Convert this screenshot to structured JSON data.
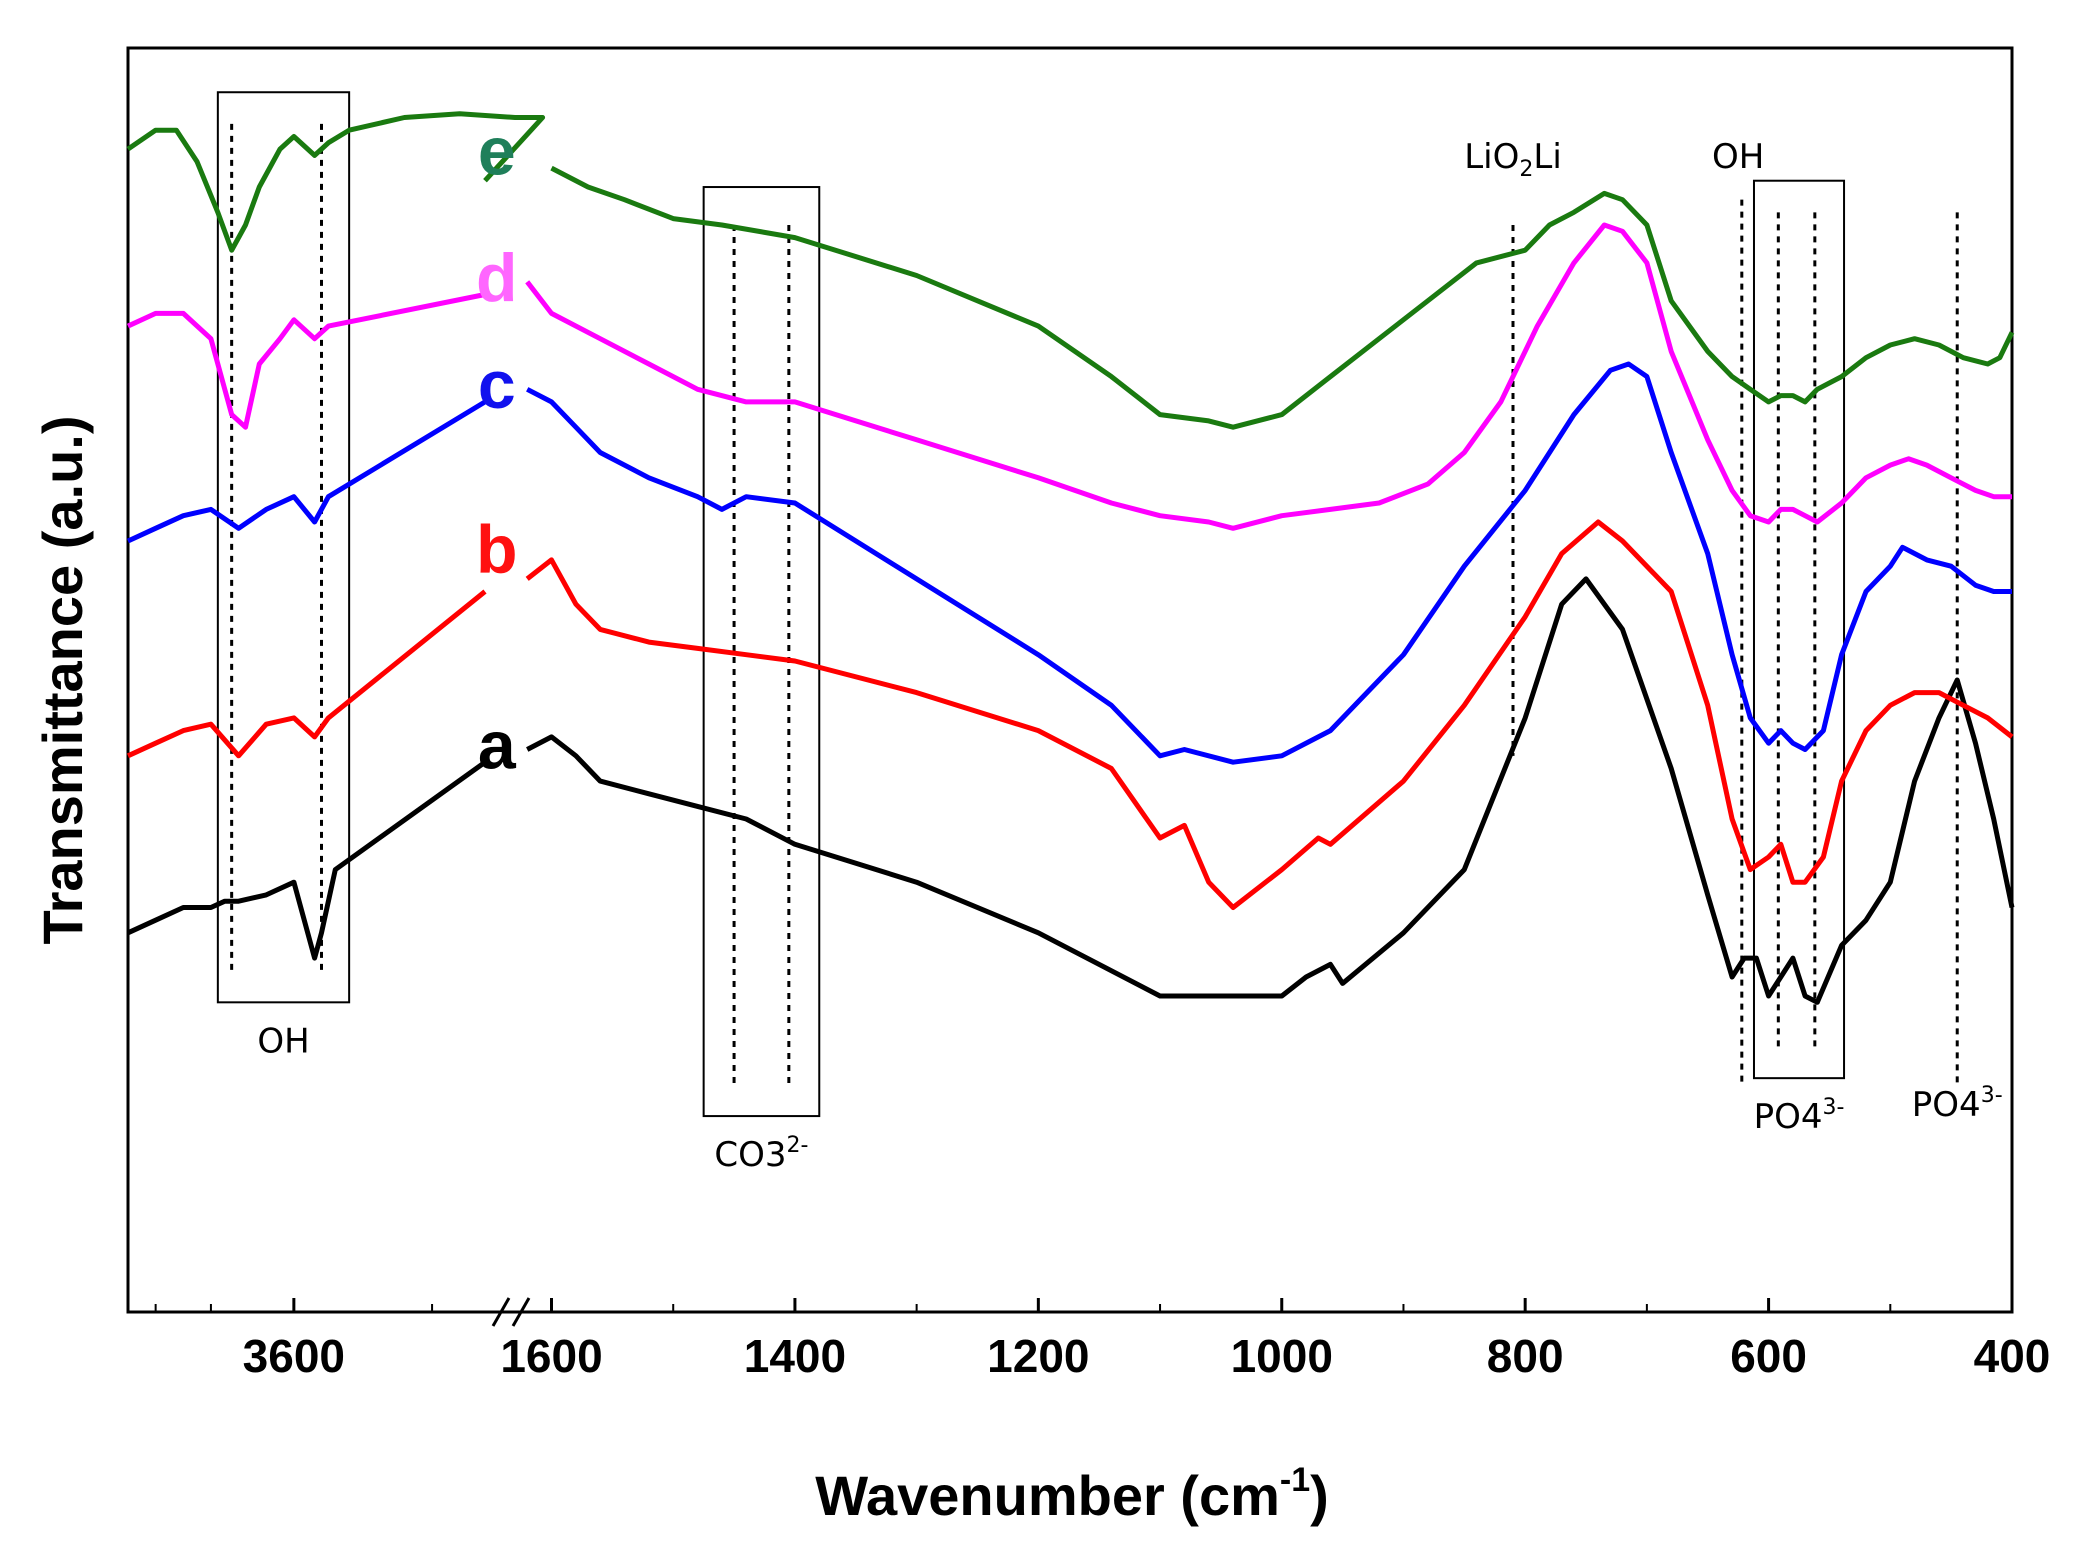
{
  "chart_data": {
    "type": "line",
    "title": "",
    "xlabel": "Wavenumber (cm",
    "xlabel_sup": "-1",
    "xlabel_close": ")",
    "ylabel": "Transmittance (a.u.)",
    "axis_break": {
      "between": [
        3620,
        1600
      ]
    },
    "ticks_left": [
      {
        "label": "3600",
        "value": 3600
      }
    ],
    "ticks_right": [
      {
        "label": "1600",
        "value": 1600
      },
      {
        "label": "1400",
        "value": 1400
      },
      {
        "label": "1200",
        "value": 1200
      },
      {
        "label": "1000",
        "value": 1000
      },
      {
        "label": "800",
        "value": 800
      },
      {
        "label": "600",
        "value": 600
      },
      {
        "label": "400",
        "value": 400
      }
    ],
    "series": [
      {
        "name": "a",
        "color": "#000000",
        "points": [
          [
            3720,
            0.3
          ],
          [
            3700,
            0.31
          ],
          [
            3680,
            0.32
          ],
          [
            3660,
            0.32
          ],
          [
            3640,
            0.325
          ],
          [
            3620,
            0.33
          ],
          [
            3600,
            0.34
          ],
          [
            3585,
            0.28
          ],
          [
            3580,
            0.3
          ],
          [
            3570,
            0.35
          ],
          [
            3650,
            0.325
          ],
          [
            1620,
            0.445
          ],
          [
            1600,
            0.455
          ],
          [
            1580,
            0.44
          ],
          [
            1560,
            0.42
          ],
          [
            1520,
            0.41
          ],
          [
            1480,
            0.4
          ],
          [
            1440,
            0.39
          ],
          [
            1400,
            0.37
          ],
          [
            1300,
            0.34
          ],
          [
            1200,
            0.3
          ],
          [
            1100,
            0.25
          ],
          [
            1000,
            0.25
          ],
          [
            980,
            0.265
          ],
          [
            960,
            0.275
          ],
          [
            950,
            0.26
          ],
          [
            900,
            0.3
          ],
          [
            850,
            0.35
          ],
          [
            800,
            0.47
          ],
          [
            770,
            0.56
          ],
          [
            750,
            0.58
          ],
          [
            720,
            0.54
          ],
          [
            680,
            0.43
          ],
          [
            650,
            0.33
          ],
          [
            630,
            0.265
          ],
          [
            620,
            0.28
          ],
          [
            610,
            0.28
          ],
          [
            600,
            0.25
          ],
          [
            590,
            0.265
          ],
          [
            580,
            0.28
          ],
          [
            570,
            0.25
          ],
          [
            560,
            0.245
          ],
          [
            540,
            0.29
          ],
          [
            520,
            0.31
          ],
          [
            500,
            0.34
          ],
          [
            480,
            0.42
          ],
          [
            460,
            0.47
          ],
          [
            445,
            0.5
          ],
          [
            430,
            0.45
          ],
          [
            415,
            0.39
          ],
          [
            400,
            0.32
          ]
        ]
      },
      {
        "name": "b",
        "color": "#ff0000",
        "points": [
          [
            3720,
            0.44
          ],
          [
            3700,
            0.45
          ],
          [
            3680,
            0.46
          ],
          [
            3660,
            0.465
          ],
          [
            3640,
            0.44
          ],
          [
            3620,
            0.465
          ],
          [
            3600,
            0.47
          ],
          [
            3585,
            0.455
          ],
          [
            3575,
            0.47
          ],
          [
            1620,
            0.58
          ],
          [
            1600,
            0.595
          ],
          [
            1580,
            0.56
          ],
          [
            1560,
            0.54
          ],
          [
            1520,
            0.53
          ],
          [
            1480,
            0.525
          ],
          [
            1440,
            0.52
          ],
          [
            1400,
            0.515
          ],
          [
            1300,
            0.49
          ],
          [
            1200,
            0.46
          ],
          [
            1140,
            0.43
          ],
          [
            1100,
            0.375
          ],
          [
            1080,
            0.385
          ],
          [
            1060,
            0.34
          ],
          [
            1040,
            0.32
          ],
          [
            1000,
            0.35
          ],
          [
            970,
            0.375
          ],
          [
            960,
            0.37
          ],
          [
            900,
            0.42
          ],
          [
            850,
            0.48
          ],
          [
            800,
            0.55
          ],
          [
            770,
            0.6
          ],
          [
            740,
            0.625
          ],
          [
            720,
            0.61
          ],
          [
            680,
            0.57
          ],
          [
            650,
            0.48
          ],
          [
            630,
            0.39
          ],
          [
            615,
            0.35
          ],
          [
            600,
            0.36
          ],
          [
            590,
            0.37
          ],
          [
            580,
            0.34
          ],
          [
            570,
            0.34
          ],
          [
            555,
            0.36
          ],
          [
            540,
            0.42
          ],
          [
            520,
            0.46
          ],
          [
            500,
            0.48
          ],
          [
            480,
            0.49
          ],
          [
            460,
            0.49
          ],
          [
            440,
            0.48
          ],
          [
            420,
            0.47
          ],
          [
            400,
            0.455
          ]
        ]
      },
      {
        "name": "c",
        "color": "#0000ff",
        "points": [
          [
            3720,
            0.61
          ],
          [
            3700,
            0.62
          ],
          [
            3680,
            0.63
          ],
          [
            3660,
            0.635
          ],
          [
            3640,
            0.62
          ],
          [
            3620,
            0.635
          ],
          [
            3600,
            0.645
          ],
          [
            3585,
            0.625
          ],
          [
            3575,
            0.645
          ],
          [
            1620,
            0.73
          ],
          [
            1600,
            0.72
          ],
          [
            1580,
            0.7
          ],
          [
            1560,
            0.68
          ],
          [
            1520,
            0.66
          ],
          [
            1480,
            0.645
          ],
          [
            1460,
            0.635
          ],
          [
            1440,
            0.645
          ],
          [
            1400,
            0.64
          ],
          [
            1300,
            0.58
          ],
          [
            1200,
            0.52
          ],
          [
            1140,
            0.48
          ],
          [
            1100,
            0.44
          ],
          [
            1080,
            0.445
          ],
          [
            1040,
            0.435
          ],
          [
            1000,
            0.44
          ],
          [
            970,
            0.455
          ],
          [
            960,
            0.46
          ],
          [
            900,
            0.52
          ],
          [
            850,
            0.59
          ],
          [
            800,
            0.65
          ],
          [
            760,
            0.71
          ],
          [
            730,
            0.745
          ],
          [
            715,
            0.75
          ],
          [
            700,
            0.74
          ],
          [
            680,
            0.68
          ],
          [
            650,
            0.6
          ],
          [
            630,
            0.52
          ],
          [
            615,
            0.47
          ],
          [
            600,
            0.45
          ],
          [
            590,
            0.46
          ],
          [
            580,
            0.45
          ],
          [
            570,
            0.445
          ],
          [
            555,
            0.46
          ],
          [
            540,
            0.52
          ],
          [
            520,
            0.57
          ],
          [
            500,
            0.59
          ],
          [
            490,
            0.605
          ],
          [
            470,
            0.595
          ],
          [
            450,
            0.59
          ],
          [
            430,
            0.575
          ],
          [
            415,
            0.57
          ],
          [
            400,
            0.57
          ]
        ]
      },
      {
        "name": "d",
        "color": "#ff00ff",
        "points": [
          [
            3720,
            0.78
          ],
          [
            3700,
            0.79
          ],
          [
            3680,
            0.79
          ],
          [
            3660,
            0.77
          ],
          [
            3645,
            0.71
          ],
          [
            3635,
            0.7
          ],
          [
            3625,
            0.75
          ],
          [
            3610,
            0.77
          ],
          [
            3600,
            0.785
          ],
          [
            3585,
            0.77
          ],
          [
            3575,
            0.78
          ],
          [
            1620,
            0.815
          ],
          [
            1600,
            0.79
          ],
          [
            1560,
            0.77
          ],
          [
            1520,
            0.75
          ],
          [
            1480,
            0.73
          ],
          [
            1440,
            0.72
          ],
          [
            1400,
            0.72
          ],
          [
            1300,
            0.69
          ],
          [
            1200,
            0.66
          ],
          [
            1140,
            0.64
          ],
          [
            1100,
            0.63
          ],
          [
            1060,
            0.625
          ],
          [
            1040,
            0.62
          ],
          [
            1000,
            0.63
          ],
          [
            960,
            0.635
          ],
          [
            920,
            0.64
          ],
          [
            880,
            0.655
          ],
          [
            850,
            0.68
          ],
          [
            820,
            0.72
          ],
          [
            790,
            0.78
          ],
          [
            760,
            0.83
          ],
          [
            735,
            0.86
          ],
          [
            720,
            0.855
          ],
          [
            700,
            0.83
          ],
          [
            680,
            0.76
          ],
          [
            650,
            0.69
          ],
          [
            630,
            0.65
          ],
          [
            615,
            0.63
          ],
          [
            600,
            0.625
          ],
          [
            590,
            0.635
          ],
          [
            580,
            0.635
          ],
          [
            570,
            0.63
          ],
          [
            560,
            0.625
          ],
          [
            540,
            0.64
          ],
          [
            520,
            0.66
          ],
          [
            500,
            0.67
          ],
          [
            485,
            0.675
          ],
          [
            470,
            0.67
          ],
          [
            450,
            0.66
          ],
          [
            430,
            0.65
          ],
          [
            415,
            0.645
          ],
          [
            400,
            0.645
          ]
        ]
      },
      {
        "name": "e",
        "color": "#1a7a10",
        "points": [
          [
            3720,
            0.92
          ],
          [
            3700,
            0.935
          ],
          [
            3685,
            0.935
          ],
          [
            3670,
            0.91
          ],
          [
            3655,
            0.87
          ],
          [
            3645,
            0.84
          ],
          [
            3635,
            0.86
          ],
          [
            3625,
            0.89
          ],
          [
            3610,
            0.92
          ],
          [
            3600,
            0.93
          ],
          [
            3585,
            0.915
          ],
          [
            3575,
            0.925
          ],
          [
            3560,
            0.935
          ],
          [
            3520,
            0.945
          ],
          [
            3480,
            0.948
          ],
          [
            3440,
            0.945
          ],
          [
            3420,
            0.945
          ],
          [
            1600,
            0.905
          ],
          [
            1570,
            0.89
          ],
          [
            1540,
            0.88
          ],
          [
            1500,
            0.865
          ],
          [
            1460,
            0.86
          ],
          [
            1400,
            0.85
          ],
          [
            1300,
            0.82
          ],
          [
            1200,
            0.78
          ],
          [
            1140,
            0.74
          ],
          [
            1100,
            0.71
          ],
          [
            1060,
            0.705
          ],
          [
            1040,
            0.7
          ],
          [
            1000,
            0.71
          ],
          [
            960,
            0.74
          ],
          [
            920,
            0.77
          ],
          [
            880,
            0.8
          ],
          [
            840,
            0.83
          ],
          [
            800,
            0.84
          ],
          [
            780,
            0.86
          ],
          [
            760,
            0.87
          ],
          [
            735,
            0.885
          ],
          [
            720,
            0.88
          ],
          [
            700,
            0.86
          ],
          [
            680,
            0.8
          ],
          [
            650,
            0.76
          ],
          [
            630,
            0.74
          ],
          [
            615,
            0.73
          ],
          [
            600,
            0.72
          ],
          [
            590,
            0.725
          ],
          [
            580,
            0.725
          ],
          [
            570,
            0.72
          ],
          [
            560,
            0.73
          ],
          [
            540,
            0.74
          ],
          [
            520,
            0.755
          ],
          [
            500,
            0.765
          ],
          [
            480,
            0.77
          ],
          [
            460,
            0.765
          ],
          [
            440,
            0.755
          ],
          [
            420,
            0.75
          ],
          [
            410,
            0.755
          ],
          [
            400,
            0.775
          ]
        ]
      }
    ],
    "reference_lines": [
      {
        "x": 3645,
        "from": 0.27,
        "to": 0.94
      },
      {
        "x": 3580,
        "from": 0.27,
        "to": 0.94
      },
      {
        "x": 1450,
        "from": 0.18,
        "to": 0.86
      },
      {
        "x": 1405,
        "from": 0.18,
        "to": 0.86
      },
      {
        "x": 810,
        "from": 0.44,
        "to": 0.86
      },
      {
        "x": 622,
        "from": 0.18,
        "to": 0.88
      },
      {
        "x": 592,
        "from": 0.21,
        "to": 0.87
      },
      {
        "x": 562,
        "from": 0.21,
        "to": 0.87
      },
      {
        "x": 445,
        "from": 0.18,
        "to": 0.87
      }
    ],
    "boxes": [
      {
        "x1": 3655,
        "x2": 3560,
        "from": 0.245,
        "to": 0.965,
        "label": "OH",
        "label_sup": ""
      },
      {
        "x1": 1475,
        "x2": 1380,
        "from": 0.155,
        "to": 0.89,
        "label": "CO3",
        "label_sup": "2-"
      },
      {
        "x1": 612,
        "x2": 538,
        "from": 0.185,
        "to": 0.895,
        "label": "PO4",
        "label_sup": "3-"
      }
    ],
    "annotations": [
      {
        "text": "LiO2Li",
        "x": 810,
        "y": 0.905
      },
      {
        "text": "OH",
        "x": 625,
        "y": 0.905
      },
      {
        "text": "PO4",
        "sup": "3-",
        "x": 445,
        "y": 0.155
      }
    ],
    "series_labels": [
      {
        "text": "e",
        "color": "#1f7f5a",
        "x": 1645,
        "y": 0.9
      },
      {
        "text": "d",
        "color": "#ff66ff",
        "x": 1645,
        "y": 0.8
      },
      {
        "text": "c",
        "color": "#1111ee",
        "x": 1645,
        "y": 0.715
      },
      {
        "text": "b",
        "color": "#ff1111",
        "x": 1645,
        "y": 0.585
      },
      {
        "text": "a",
        "color": "#000000",
        "x": 1645,
        "y": 0.43
      }
    ],
    "ylim": [
      0,
      1
    ]
  }
}
